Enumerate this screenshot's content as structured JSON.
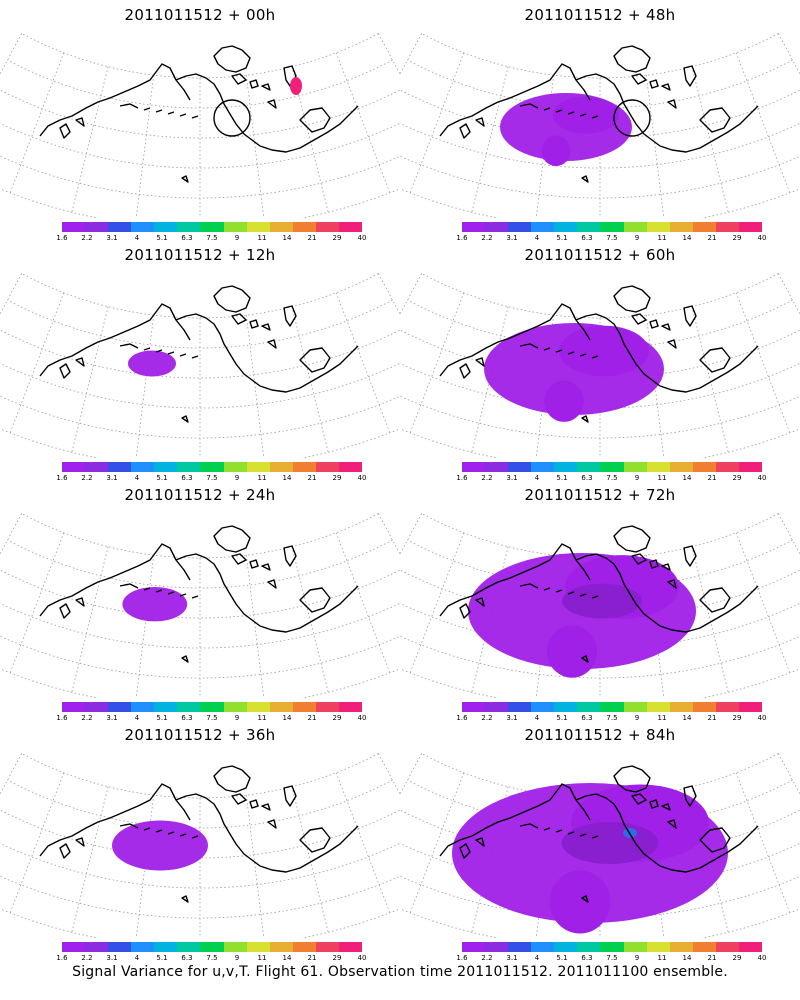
{
  "panels": [
    {
      "title": "2011011512 + 00h",
      "spread": 0,
      "circle": true,
      "hotspot": true
    },
    {
      "title": "2011011512 + 12h",
      "spread": 0.05,
      "circle": false,
      "hotspot": false
    },
    {
      "title": "2011011512 + 24h",
      "spread": 0.12,
      "circle": false,
      "hotspot": false
    },
    {
      "title": "2011011512 + 36h",
      "spread": 0.25,
      "circle": false,
      "hotspot": false
    },
    {
      "title": "2011011512 + 48h",
      "spread": 0.4,
      "circle": true,
      "hotspot": false
    },
    {
      "title": "2011011512 + 60h",
      "spread": 0.6,
      "circle": false,
      "hotspot": false
    },
    {
      "title": "2011011512 + 72h",
      "spread": 0.8,
      "circle": false,
      "hotspot": false
    },
    {
      "title": "2011011512 + 84h",
      "spread": 1.0,
      "circle": false,
      "hotspot": false
    }
  ],
  "legend": {
    "labels": [
      "1.6",
      "2.2",
      "3.1",
      "4",
      "5.1",
      "6.3",
      "7.5",
      "9",
      "11",
      "14",
      "21",
      "29",
      "40"
    ],
    "colors": [
      "#a020f0",
      "#8b2be2",
      "#3050e8",
      "#1e90ff",
      "#00b4e0",
      "#00c8a0",
      "#00d050",
      "#90e030",
      "#d8e030",
      "#e8b030",
      "#f08030",
      "#f04060",
      "#f0207a"
    ]
  },
  "colors": {
    "fill": "#a020e8",
    "fill_dark": "#8a1fd0",
    "hot": "#f0207a",
    "blue": "#2f6be8",
    "coast": "#000000",
    "grid": "#999999"
  },
  "caption": "Signal Variance for u,v,T. Flight 61. Observation time 2011011512. 2011011100 ensemble."
}
